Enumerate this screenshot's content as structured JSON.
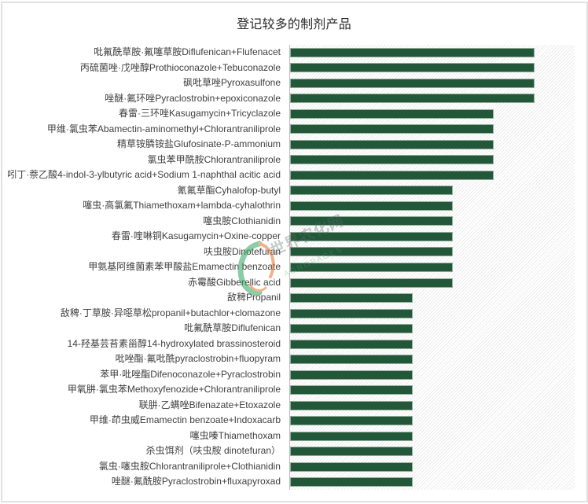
{
  "title": "登记较多的制剂产品",
  "watermark": {
    "cn": "世界农化网",
    "en": "AGROPAGES"
  },
  "colors": {
    "bar": "#22573a",
    "bar_border": "#93ae9c",
    "axis": "#bfbfbf",
    "label": "#3f3f3f",
    "title": "#2b2b2b"
  },
  "chart_data": {
    "type": "bar",
    "orientation": "horizontal",
    "title": "登记较多的制剂产品",
    "xlabel": "",
    "ylabel": "",
    "xlim": [
      0,
      7
    ],
    "grid": false,
    "legend": null,
    "tick_labels_shown": false,
    "categories": [
      "吡氟酰草胺·氟噻草胺Diflufenican+Flufenacet",
      "丙硫菌唑·戊唑醇Prothioconazole+Tebuconazole",
      "砜吡草唑Pyroxasulfone",
      "唑醚·氟环唑Pyraclostrobin+epoxiconazole",
      "春雷·三环唑Kasugamycin+Tricyclazole",
      "甲维·氯虫苯Abamectin-aminomethyl+Chlorantraniliprole",
      "精草铵膦铵盐Glufosinate-P-ammonium",
      "氯虫苯甲酰胺Chlorantraniliprole",
      "吲丁·萘乙酸4-indol-3-ylbutyric acid+Sodium 1-naphthal acitic acid",
      "氰氟草酯Cyhalofop-butyl",
      "噻虫·高氯氟Thiamethoxam+lambda-cyhalothrin",
      "噻虫胺Clothianidin",
      "春雷·喹啉铜Kasugamycin+Oxine-copper",
      "呋虫胺Dinotefuran",
      "甲氨基阿维菌素苯甲酸盐Emamectin benzoate",
      "赤霉酸Gibberellic acid",
      "敌稗Propanil",
      "敌稗·丁草胺·异噁草松propanil+butachlor+clomazone",
      "吡氟酰草胺Diflufenican",
      "14-羟基芸苔素甾醇14-hydroxylated brassinosteroid",
      "吡唑酯·氟吡酰pyraclostrobin+fluopyram",
      "苯甲·吡唑酯Difenoconazole+Pyraclostrobin",
      "甲氧肼·氯虫苯Methoxyfenozide+Chlorantraniliprole",
      "联肼·乙螨唑Bifenazate+Etoxazole",
      "甲维·茚虫威Emamectin benzoate+Indoxacarb",
      "噻虫嗪Thiamethoxam",
      "杀虫饵剂（呋虫胺 dinotefuran）",
      "氯虫·噻虫胺Chlorantraniliprole+Clothianidin",
      "唑醚·氟酰胺Pyraclostrobin+fluxapyroxad"
    ],
    "values": [
      6,
      6,
      6,
      6,
      5,
      5,
      5,
      5,
      5,
      4,
      4,
      4,
      4,
      4,
      4,
      4,
      3,
      3,
      3,
      3,
      3,
      3,
      3,
      3,
      3,
      3,
      3,
      3,
      3
    ]
  }
}
